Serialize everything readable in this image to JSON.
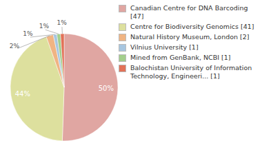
{
  "chart_data": {
    "type": "pie",
    "categories": [
      "Canadian Centre for DNA Barcoding [47]",
      "Centre for Biodiversity Genomics [41]",
      "Natural History Museum, London [2]",
      "Vilnius University [1]",
      "Mined from GenBank, NCBI [1]",
      "Balochistan University of Information Technology, Engineeri... [1]"
    ],
    "values": [
      47,
      41,
      2,
      1,
      1,
      1
    ],
    "slice_labels": [
      "50%",
      "44%",
      "2%",
      "1%",
      "1%",
      "1%"
    ],
    "colors": [
      "#e0a6a2",
      "#dde09e",
      "#f0b483",
      "#a7c6e0",
      "#a3ce8c",
      "#e27258"
    ],
    "data_labels": true,
    "legend": "right"
  }
}
